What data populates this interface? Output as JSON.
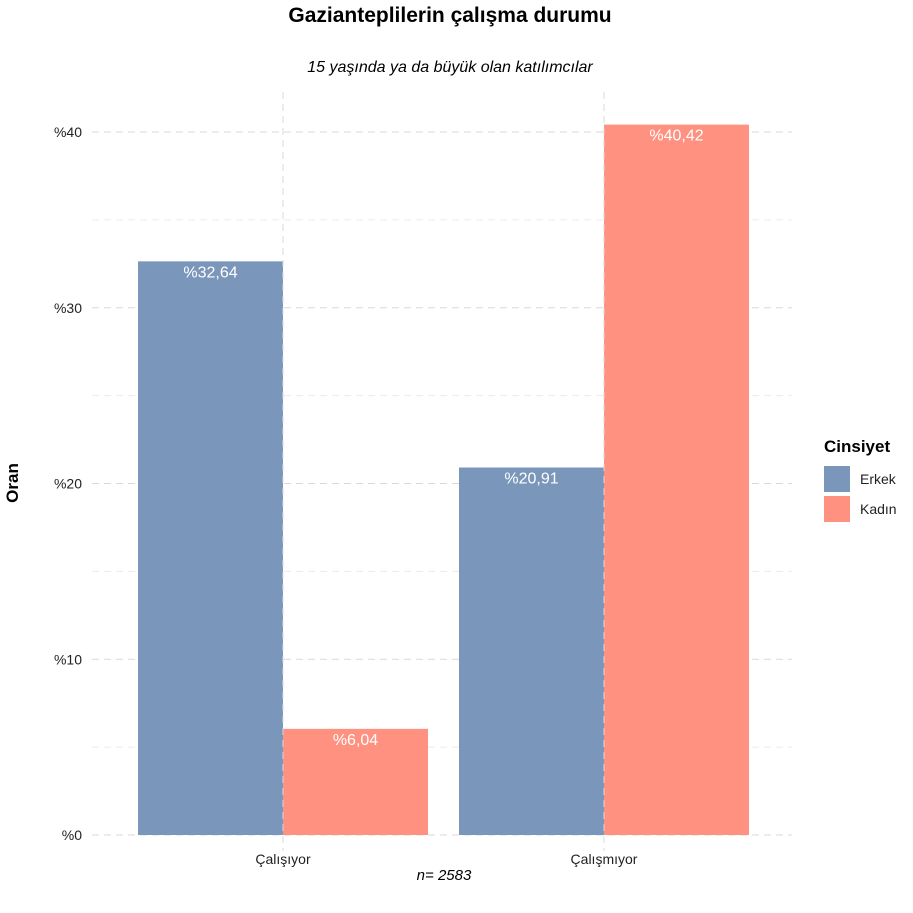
{
  "chart_data": {
    "type": "bar",
    "title": "Gazianteplilerin çalışma durumu",
    "subtitle": "15 yaşında ya da büyük olan katılımcılar",
    "xlabel": "",
    "ylabel": "Oran",
    "caption": "n=  2583",
    "categories": [
      "Çalışıyor",
      "Çalışmıyor"
    ],
    "series": [
      {
        "name": "Erkek",
        "color": "#7b96bb",
        "values": [
          32.64,
          20.91
        ],
        "labels": [
          "%32,64",
          "%20,91"
        ]
      },
      {
        "name": "Kadın",
        "color": "#ff9180",
        "values": [
          6.04,
          40.42
        ],
        "labels": [
          "%6,04",
          "%40,42"
        ]
      }
    ],
    "ylim": [
      0,
      40
    ],
    "yticks": [
      0,
      10,
      20,
      30,
      40
    ],
    "ytick_labels": [
      "%0",
      "%10",
      "%20",
      "%30",
      "%40"
    ],
    "grid": true,
    "legend": {
      "title": "Cinsiyet",
      "position": "right"
    }
  }
}
